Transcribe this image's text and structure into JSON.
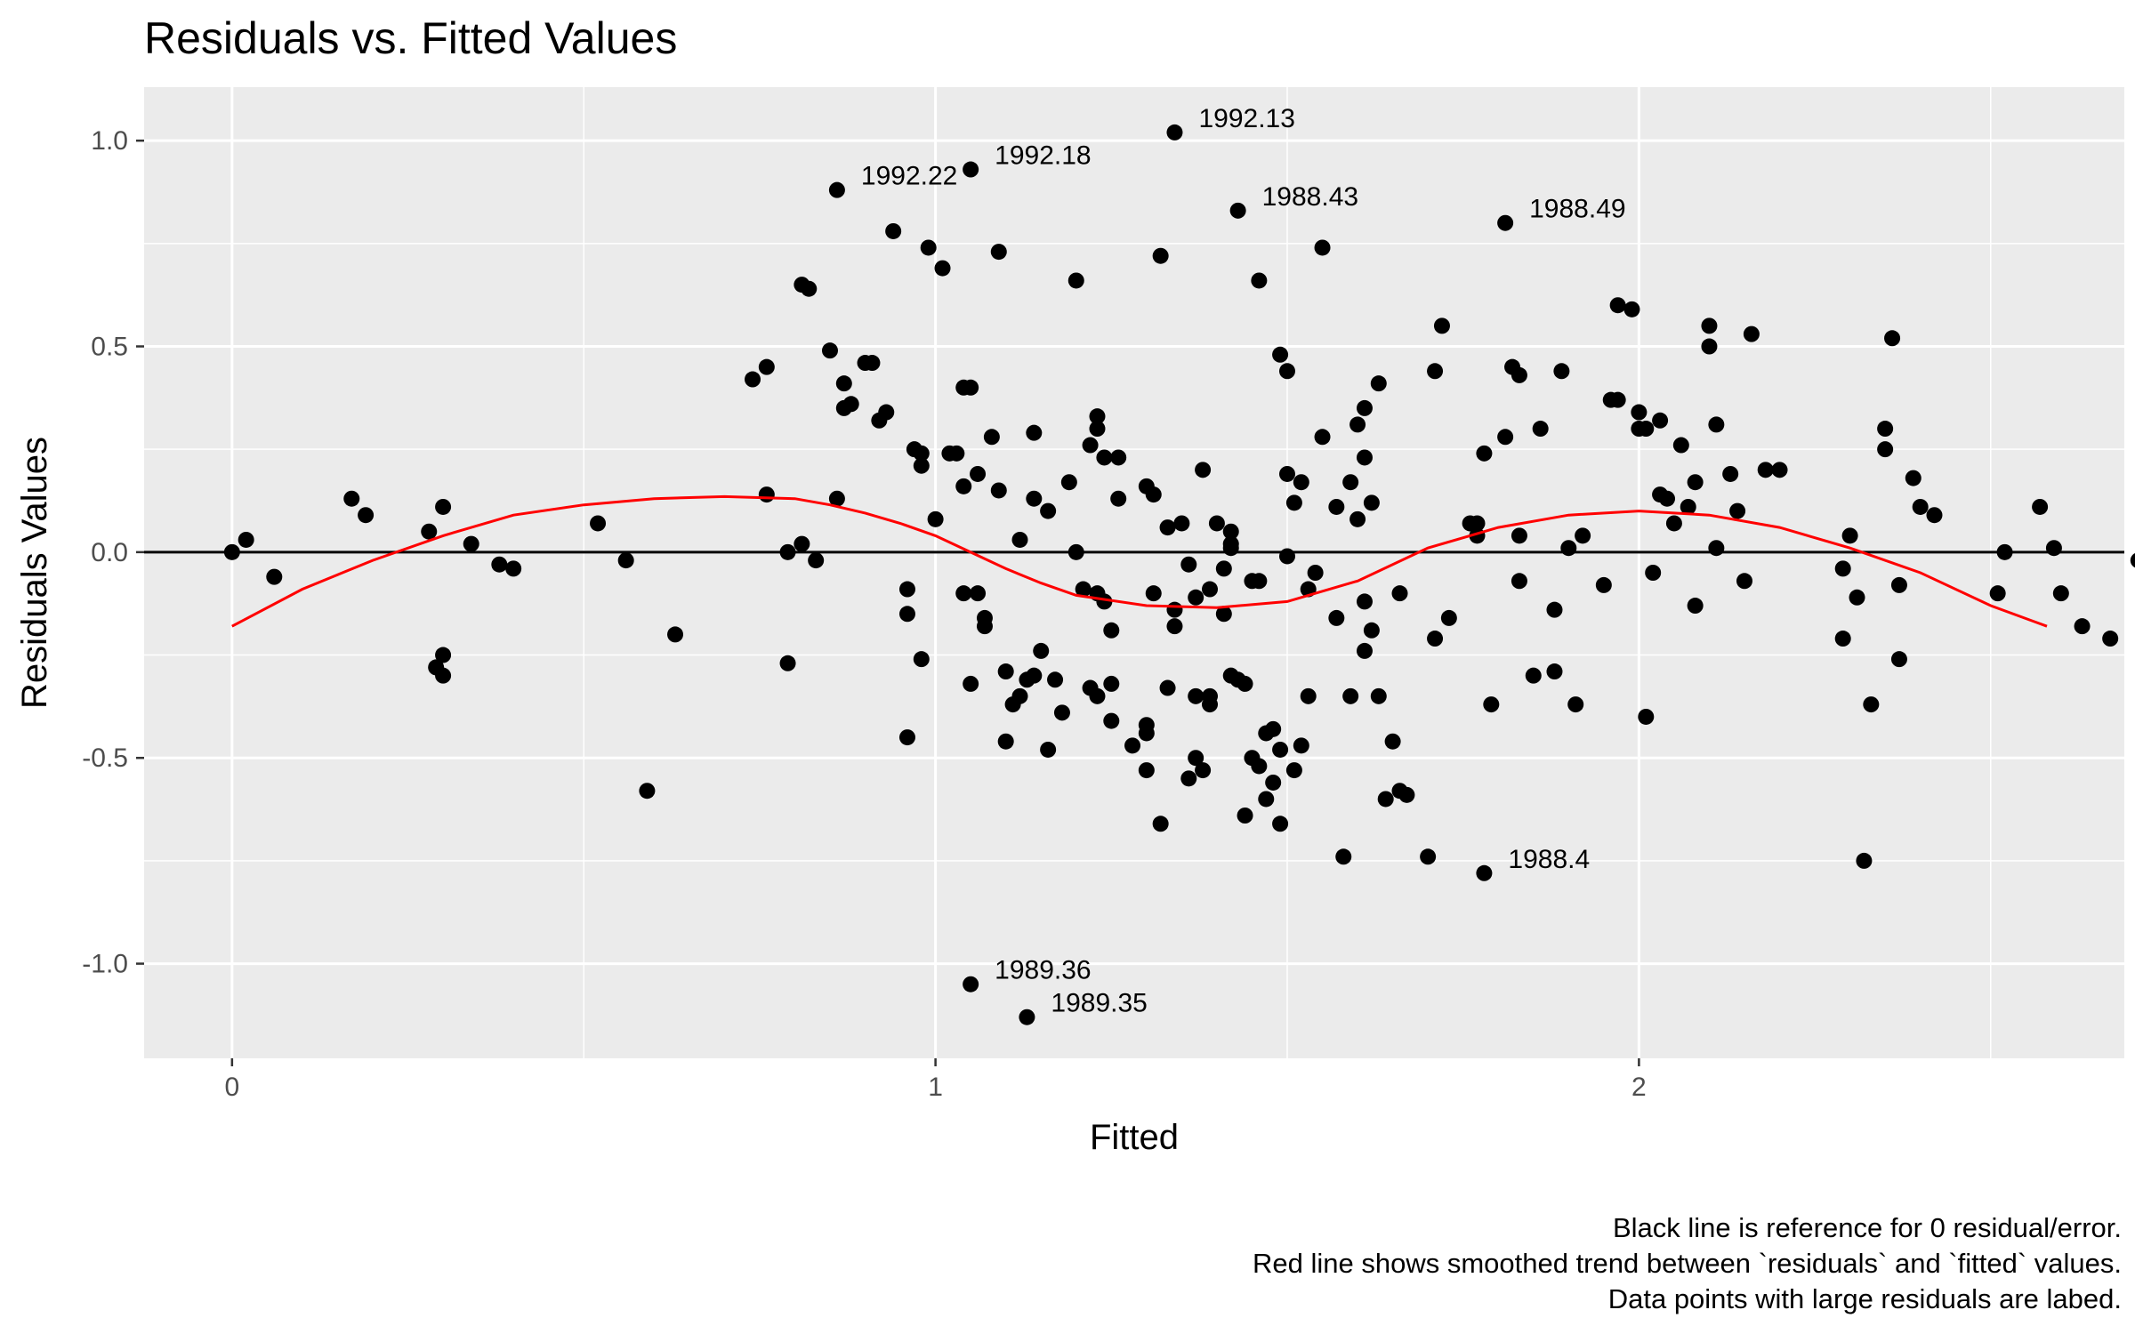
{
  "chart_data": {
    "type": "scatter",
    "title": "Residuals vs. Fitted Values",
    "xlabel": "Fitted",
    "ylabel": "Residuals Values",
    "xlim": [
      -0.125,
      2.69
    ],
    "ylim": [
      -1.23,
      1.13
    ],
    "x_ticks": [
      0,
      1,
      2
    ],
    "x_tick_labels": [
      "0",
      "1",
      "2"
    ],
    "y_ticks": [
      -1.0,
      -0.5,
      0.0,
      0.5,
      1.0
    ],
    "y_tick_labels": [
      "-1.0",
      "-0.5",
      "0.0",
      "0.5",
      "1.0"
    ],
    "grid": true,
    "reference_line": 0,
    "colors": {
      "panel_bg": "#ebebeb",
      "grid": "#ffffff",
      "points": "#000000",
      "trend": "#ff0000",
      "reference": "#000000"
    },
    "caption": [
      "Black line is reference for 0 residual/error.",
      "Red line shows smoothed trend between `residuals` and `fitted` values.",
      "Data points with large residuals are labed."
    ],
    "trend": {
      "x": [
        0,
        0.1,
        0.2,
        0.3,
        0.4,
        0.5,
        0.6,
        0.7,
        0.8,
        0.85,
        0.9,
        0.95,
        1.0,
        1.05,
        1.1,
        1.15,
        1.2,
        1.3,
        1.4,
        1.5,
        1.6,
        1.7,
        1.8,
        1.9,
        2.0,
        2.1,
        2.2,
        2.3,
        2.4,
        2.5,
        2.58
      ],
      "y": [
        -0.18,
        -0.09,
        -0.02,
        0.04,
        0.09,
        0.115,
        0.13,
        0.135,
        0.13,
        0.115,
        0.095,
        0.07,
        0.04,
        0.0,
        -0.04,
        -0.075,
        -0.105,
        -0.13,
        -0.135,
        -0.12,
        -0.07,
        0.01,
        0.06,
        0.09,
        0.1,
        0.09,
        0.06,
        0.01,
        -0.05,
        -0.13,
        -0.18
      ]
    },
    "labeled_points": [
      {
        "x": 1.34,
        "y": 1.02,
        "label": "1992.13"
      },
      {
        "x": 1.05,
        "y": 0.93,
        "label": "1992.18"
      },
      {
        "x": 0.86,
        "y": 0.88,
        "label": "1992.22"
      },
      {
        "x": 1.43,
        "y": 0.83,
        "label": "1988.43"
      },
      {
        "x": 1.81,
        "y": 0.8,
        "label": "1988.49"
      },
      {
        "x": 1.78,
        "y": -0.78,
        "label": "1988.4"
      },
      {
        "x": 1.05,
        "y": -1.05,
        "label": "1989.36"
      },
      {
        "x": 1.13,
        "y": -1.13,
        "label": "1989.35"
      }
    ],
    "points": [
      [
        0.0,
        0.0
      ],
      [
        0.02,
        0.03
      ],
      [
        0.06,
        -0.06
      ],
      [
        0.17,
        0.13
      ],
      [
        0.19,
        0.09
      ],
      [
        0.28,
        0.05
      ],
      [
        0.29,
        -0.28
      ],
      [
        0.3,
        -0.25
      ],
      [
        0.3,
        0.11
      ],
      [
        0.3,
        -0.3
      ],
      [
        0.34,
        0.02
      ],
      [
        0.38,
        -0.03
      ],
      [
        0.4,
        -0.04
      ],
      [
        0.52,
        0.07
      ],
      [
        0.56,
        -0.02
      ],
      [
        0.59,
        -0.58
      ],
      [
        0.63,
        -0.2
      ],
      [
        0.74,
        0.42
      ],
      [
        0.76,
        0.45
      ],
      [
        0.76,
        0.14
      ],
      [
        0.79,
        0.0
      ],
      [
        0.79,
        -0.27
      ],
      [
        0.81,
        0.02
      ],
      [
        0.81,
        0.65
      ],
      [
        0.82,
        0.64
      ],
      [
        0.83,
        -0.02
      ],
      [
        0.85,
        0.49
      ],
      [
        0.86,
        0.13
      ],
      [
        0.87,
        0.41
      ],
      [
        0.87,
        0.35
      ],
      [
        0.88,
        0.36
      ],
      [
        0.9,
        0.46
      ],
      [
        0.91,
        0.46
      ],
      [
        0.92,
        0.32
      ],
      [
        0.93,
        0.34
      ],
      [
        0.94,
        0.78
      ],
      [
        0.96,
        -0.09
      ],
      [
        0.96,
        -0.15
      ],
      [
        0.96,
        -0.45
      ],
      [
        0.97,
        0.25
      ],
      [
        0.98,
        0.21
      ],
      [
        0.98,
        0.24
      ],
      [
        0.98,
        -0.26
      ],
      [
        0.99,
        0.74
      ],
      [
        1.0,
        0.08
      ],
      [
        1.01,
        0.69
      ],
      [
        1.02,
        0.24
      ],
      [
        1.03,
        0.24
      ],
      [
        1.04,
        0.16
      ],
      [
        1.04,
        0.4
      ],
      [
        1.04,
        -0.1
      ],
      [
        1.05,
        -0.32
      ],
      [
        1.05,
        0.4
      ],
      [
        1.06,
        -0.1
      ],
      [
        1.06,
        0.19
      ],
      [
        1.07,
        -0.16
      ],
      [
        1.07,
        -0.18
      ],
      [
        1.08,
        0.28
      ],
      [
        1.09,
        0.15
      ],
      [
        1.09,
        0.73
      ],
      [
        1.1,
        -0.46
      ],
      [
        1.1,
        -0.29
      ],
      [
        1.11,
        -0.37
      ],
      [
        1.12,
        -0.35
      ],
      [
        1.12,
        0.03
      ],
      [
        1.13,
        -0.31
      ],
      [
        1.14,
        0.29
      ],
      [
        1.14,
        -0.3
      ],
      [
        1.14,
        0.13
      ],
      [
        1.15,
        -0.24
      ],
      [
        1.16,
        0.1
      ],
      [
        1.16,
        -0.48
      ],
      [
        1.17,
        -0.31
      ],
      [
        1.18,
        -0.39
      ],
      [
        1.19,
        0.17
      ],
      [
        1.2,
        0.0
      ],
      [
        1.2,
        0.66
      ],
      [
        1.21,
        -0.09
      ],
      [
        1.22,
        -0.33
      ],
      [
        1.22,
        0.26
      ],
      [
        1.23,
        -0.35
      ],
      [
        1.23,
        0.3
      ],
      [
        1.23,
        0.33
      ],
      [
        1.23,
        -0.1
      ],
      [
        1.24,
        0.23
      ],
      [
        1.24,
        -0.12
      ],
      [
        1.25,
        -0.19
      ],
      [
        1.25,
        -0.41
      ],
      [
        1.25,
        -0.32
      ],
      [
        1.26,
        0.23
      ],
      [
        1.26,
        0.13
      ],
      [
        1.28,
        -0.47
      ],
      [
        1.3,
        0.16
      ],
      [
        1.3,
        -0.42
      ],
      [
        1.3,
        -0.44
      ],
      [
        1.3,
        -0.53
      ],
      [
        1.31,
        -0.1
      ],
      [
        1.31,
        0.14
      ],
      [
        1.32,
        0.72
      ],
      [
        1.32,
        -0.66
      ],
      [
        1.33,
        0.06
      ],
      [
        1.33,
        -0.33
      ],
      [
        1.34,
        -0.14
      ],
      [
        1.34,
        -0.18
      ],
      [
        1.35,
        0.07
      ],
      [
        1.36,
        -0.03
      ],
      [
        1.36,
        -0.55
      ],
      [
        1.37,
        -0.11
      ],
      [
        1.37,
        -0.5
      ],
      [
        1.37,
        -0.35
      ],
      [
        1.38,
        -0.53
      ],
      [
        1.38,
        0.2
      ],
      [
        1.39,
        -0.35
      ],
      [
        1.39,
        -0.09
      ],
      [
        1.39,
        -0.37
      ],
      [
        1.4,
        0.07
      ],
      [
        1.41,
        -0.15
      ],
      [
        1.41,
        -0.04
      ],
      [
        1.42,
        0.01
      ],
      [
        1.42,
        0.02
      ],
      [
        1.42,
        0.05
      ],
      [
        1.42,
        -0.3
      ],
      [
        1.43,
        -0.31
      ],
      [
        1.44,
        -0.32
      ],
      [
        1.44,
        -0.64
      ],
      [
        1.45,
        -0.5
      ],
      [
        1.45,
        -0.07
      ],
      [
        1.46,
        -0.52
      ],
      [
        1.46,
        0.66
      ],
      [
        1.46,
        -0.07
      ],
      [
        1.47,
        -0.6
      ],
      [
        1.47,
        -0.44
      ],
      [
        1.48,
        -0.43
      ],
      [
        1.48,
        -0.56
      ],
      [
        1.49,
        -0.48
      ],
      [
        1.49,
        -0.66
      ],
      [
        1.49,
        0.48
      ],
      [
        1.5,
        0.44
      ],
      [
        1.5,
        -0.01
      ],
      [
        1.5,
        0.19
      ],
      [
        1.51,
        -0.53
      ],
      [
        1.51,
        0.12
      ],
      [
        1.52,
        -0.47
      ],
      [
        1.52,
        0.17
      ],
      [
        1.53,
        -0.35
      ],
      [
        1.53,
        -0.09
      ],
      [
        1.54,
        -0.05
      ],
      [
        1.55,
        0.28
      ],
      [
        1.55,
        0.74
      ],
      [
        1.57,
        -0.16
      ],
      [
        1.57,
        0.11
      ],
      [
        1.58,
        -0.74
      ],
      [
        1.59,
        -0.35
      ],
      [
        1.59,
        0.17
      ],
      [
        1.6,
        0.31
      ],
      [
        1.6,
        0.08
      ],
      [
        1.61,
        0.23
      ],
      [
        1.61,
        0.35
      ],
      [
        1.61,
        -0.12
      ],
      [
        1.61,
        -0.24
      ],
      [
        1.62,
        -0.19
      ],
      [
        1.62,
        0.12
      ],
      [
        1.63,
        0.41
      ],
      [
        1.63,
        -0.35
      ],
      [
        1.64,
        -0.6
      ],
      [
        1.65,
        -0.46
      ],
      [
        1.66,
        -0.1
      ],
      [
        1.66,
        -0.58
      ],
      [
        1.67,
        -0.59
      ],
      [
        1.7,
        -0.74
      ],
      [
        1.71,
        -0.21
      ],
      [
        1.71,
        0.44
      ],
      [
        1.72,
        0.55
      ],
      [
        1.73,
        -0.16
      ],
      [
        1.76,
        0.07
      ],
      [
        1.77,
        0.04
      ],
      [
        1.77,
        0.07
      ],
      [
        1.78,
        0.24
      ],
      [
        1.79,
        -0.37
      ],
      [
        1.81,
        0.28
      ],
      [
        1.82,
        0.45
      ],
      [
        1.83,
        0.43
      ],
      [
        1.83,
        0.04
      ],
      [
        1.83,
        -0.07
      ],
      [
        1.85,
        -0.3
      ],
      [
        1.86,
        0.3
      ],
      [
        1.88,
        -0.14
      ],
      [
        1.88,
        -0.29
      ],
      [
        1.89,
        0.44
      ],
      [
        1.9,
        0.01
      ],
      [
        1.91,
        -0.37
      ],
      [
        1.92,
        0.04
      ],
      [
        1.95,
        -0.08
      ],
      [
        1.96,
        0.37
      ],
      [
        1.97,
        0.37
      ],
      [
        1.97,
        0.6
      ],
      [
        1.99,
        0.59
      ],
      [
        2.0,
        0.34
      ],
      [
        2.0,
        0.3
      ],
      [
        2.01,
        0.3
      ],
      [
        2.01,
        -0.4
      ],
      [
        2.02,
        -0.05
      ],
      [
        2.03,
        0.32
      ],
      [
        2.03,
        0.14
      ],
      [
        2.04,
        0.13
      ],
      [
        2.05,
        0.07
      ],
      [
        2.06,
        0.26
      ],
      [
        2.07,
        0.11
      ],
      [
        2.08,
        0.17
      ],
      [
        2.08,
        -0.13
      ],
      [
        2.1,
        0.55
      ],
      [
        2.1,
        0.5
      ],
      [
        2.11,
        0.01
      ],
      [
        2.11,
        0.31
      ],
      [
        2.13,
        0.19
      ],
      [
        2.14,
        0.1
      ],
      [
        2.15,
        -0.07
      ],
      [
        2.16,
        0.53
      ],
      [
        2.18,
        0.2
      ],
      [
        2.2,
        0.2
      ],
      [
        2.29,
        -0.21
      ],
      [
        2.29,
        -0.04
      ],
      [
        2.3,
        0.04
      ],
      [
        2.31,
        -0.11
      ],
      [
        2.32,
        -0.75
      ],
      [
        2.33,
        -0.37
      ],
      [
        2.35,
        0.3
      ],
      [
        2.35,
        0.25
      ],
      [
        2.36,
        0.52
      ],
      [
        2.37,
        -0.08
      ],
      [
        2.37,
        -0.26
      ],
      [
        2.39,
        0.18
      ],
      [
        2.4,
        0.11
      ],
      [
        2.42,
        0.09
      ],
      [
        2.51,
        -0.1
      ],
      [
        2.52,
        0.0
      ],
      [
        2.57,
        0.11
      ],
      [
        2.59,
        0.01
      ],
      [
        2.6,
        -0.1
      ],
      [
        2.63,
        -0.18
      ],
      [
        2.67,
        -0.21
      ],
      [
        2.71,
        -0.02
      ]
    ]
  }
}
